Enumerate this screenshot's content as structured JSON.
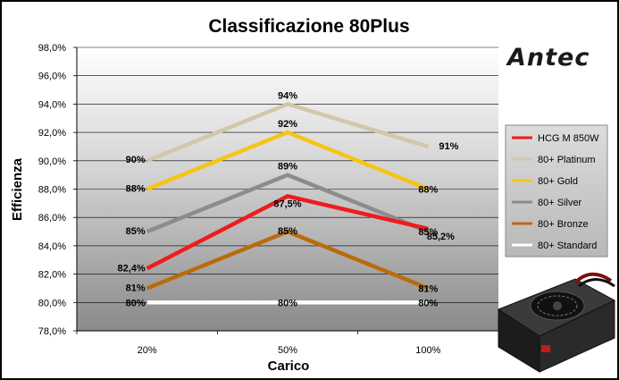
{
  "chart_data": {
    "type": "line",
    "title": "Classificazione 80Plus",
    "xlabel": "Carico",
    "ylabel": "Efficienza",
    "categories": [
      "20%",
      "50%",
      "100%"
    ],
    "ylim": [
      78,
      98
    ],
    "ytick_labels": [
      "78,0%",
      "80,0%",
      "82,0%",
      "84,0%",
      "86,0%",
      "88,0%",
      "90,0%",
      "92,0%",
      "94,0%",
      "96,0%",
      "98,0%"
    ],
    "grid": true,
    "legend_position": "right",
    "series": [
      {
        "name": "HCG M 850W",
        "color": "#ee1c1c",
        "values": [
          82.4,
          87.5,
          85.2
        ],
        "labels": [
          "82,4%",
          "87,5%",
          "85,2%"
        ]
      },
      {
        "name": "80+ Platinum",
        "color": "#d2c7a9",
        "values": [
          90,
          94,
          91
        ],
        "labels": [
          "90%",
          "94%",
          "91%"
        ]
      },
      {
        "name": "80+ Gold",
        "color": "#f8c414",
        "values": [
          88,
          92,
          88
        ],
        "labels": [
          "88%",
          "92%",
          "88%"
        ]
      },
      {
        "name": "80+ Silver",
        "color": "#8c8c8c",
        "values": [
          85,
          89,
          85
        ],
        "labels": [
          "85%",
          "89%",
          "85%"
        ]
      },
      {
        "name": "80+ Bronze",
        "color": "#bb6a0c",
        "values": [
          81,
          85,
          81
        ],
        "labels": [
          "81%",
          "85%",
          "81%"
        ]
      },
      {
        "name": "80+ Standard",
        "color": "#ffffff",
        "values": [
          80,
          80,
          80
        ],
        "labels": [
          "80%",
          "80%",
          "80%"
        ]
      }
    ]
  },
  "branding": {
    "logo_text": "Antec",
    "logo_color": "#1a1a1a",
    "product_icon": "psu-icon"
  }
}
